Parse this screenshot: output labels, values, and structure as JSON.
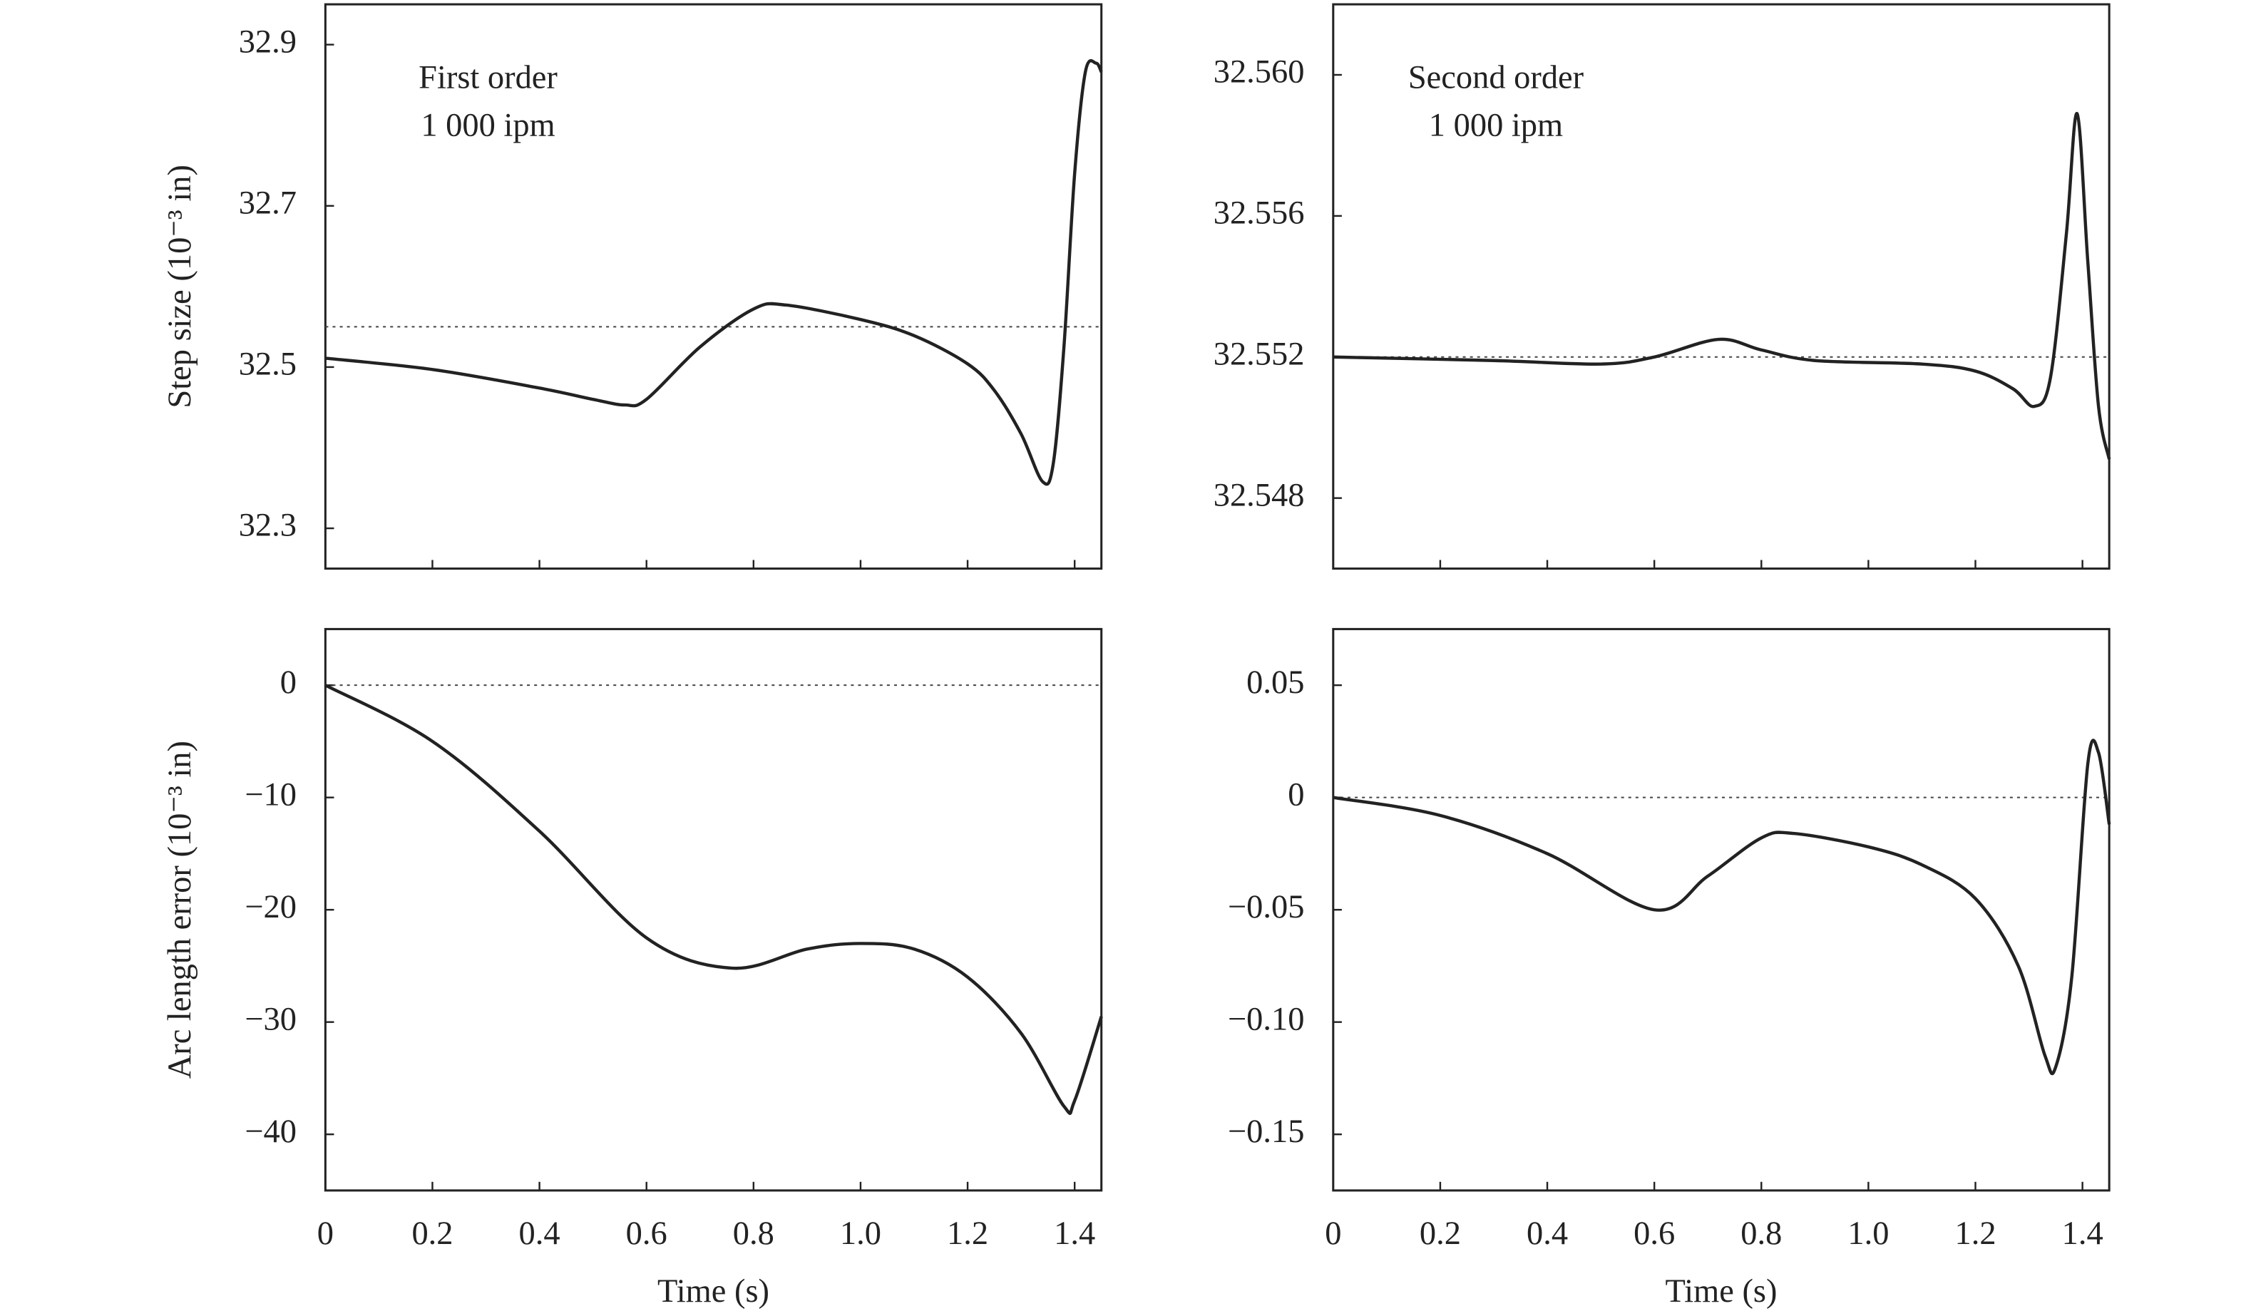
{
  "chart_data": [
    {
      "type": "line",
      "ylabel": "Step size (10⁻³ in)",
      "annotation": [
        "First order",
        "1 000 ipm"
      ],
      "xlim": [
        0,
        1.45
      ],
      "ylim": [
        32.25,
        32.95
      ],
      "xticks": [
        0,
        0.2,
        0.4,
        0.6,
        0.8,
        1,
        1.2,
        1.4
      ],
      "yticks": [
        32.3,
        32.5,
        32.7,
        32.9
      ],
      "reference": 32.55,
      "x": [
        0,
        0.2,
        0.4,
        0.5,
        0.56,
        0.6,
        0.7,
        0.8,
        0.86,
        1.0,
        1.1,
        1.2,
        1.25,
        1.3,
        1.34,
        1.36,
        1.38,
        1.4,
        1.42,
        1.44,
        1.45
      ],
      "series": [
        {
          "color": "#222222",
          "values": [
            32.511,
            32.497,
            32.474,
            32.46,
            32.453,
            32.46,
            32.525,
            32.572,
            32.577,
            32.559,
            32.539,
            32.504,
            32.471,
            32.417,
            32.358,
            32.38,
            32.525,
            32.74,
            32.866,
            32.877,
            32.866
          ]
        }
      ]
    },
    {
      "type": "line",
      "annotation": [
        "Second order",
        "1 000 ipm"
      ],
      "xlim": [
        0,
        1.45
      ],
      "ylim": [
        32.546,
        32.562
      ],
      "xticks": [
        0,
        0.2,
        0.4,
        0.6,
        0.8,
        1,
        1.2,
        1.4
      ],
      "yticks": [
        32.548,
        32.552,
        32.556,
        {
          "value": 32.56,
          "label": "32.560"
        }
      ],
      "reference": 32.552,
      "x": [
        0,
        0.3,
        0.5,
        0.6,
        0.72,
        0.8,
        0.9,
        1.1,
        1.2,
        1.27,
        1.31,
        1.34,
        1.37,
        1.39,
        1.41,
        1.43,
        1.45
      ],
      "series": [
        {
          "color": "#222222",
          "values": [
            32.552,
            32.5519,
            32.5518,
            32.552,
            32.5525,
            32.5522,
            32.5519,
            32.5518,
            32.5516,
            32.5511,
            32.5506,
            32.5514,
            32.5555,
            32.5589,
            32.5547,
            32.5506,
            32.5491
          ]
        }
      ]
    },
    {
      "type": "line",
      "ylabel": "Arc length error (10⁻³ in)",
      "xlabel": "Time (s)",
      "xlim": [
        0,
        1.45
      ],
      "ylim": [
        -45,
        5
      ],
      "xticks": [
        0,
        0.2,
        0.4,
        0.6,
        0.8,
        {
          "value": 1,
          "label": "1.0"
        },
        1.2,
        1.4
      ],
      "yticks": [
        {
          "value": -40,
          "label": "−40"
        },
        {
          "value": -30,
          "label": "−30"
        },
        {
          "value": -20,
          "label": "−20"
        },
        {
          "value": -10,
          "label": "−10"
        },
        0
      ],
      "reference": 0,
      "x": [
        0,
        0.2,
        0.4,
        0.6,
        0.76,
        0.9,
        1.0,
        1.1,
        1.2,
        1.3,
        1.38,
        1.4,
        1.45
      ],
      "series": [
        {
          "color": "#222222",
          "values": [
            0,
            -5,
            -13,
            -22.5,
            -25.2,
            -23.5,
            -23,
            -23.5,
            -26,
            -31,
            -37.5,
            -37,
            -29.5
          ]
        }
      ]
    },
    {
      "type": "line",
      "xlabel": "Time (s)",
      "xlim": [
        0,
        1.45
      ],
      "ylim": [
        -0.175,
        0.075
      ],
      "xticks": [
        0,
        0.2,
        0.4,
        0.6,
        0.8,
        {
          "value": 1,
          "label": "1.0"
        },
        1.2,
        1.4
      ],
      "yticks": [
        {
          "value": -0.15,
          "label": "−0.15"
        },
        {
          "value": -0.1,
          "label": "−0.10"
        },
        {
          "value": -0.05,
          "label": "−0.05"
        },
        0,
        0.05
      ],
      "reference": 0,
      "x": [
        0,
        0.2,
        0.4,
        0.6,
        0.7,
        0.8,
        0.86,
        1.0,
        1.1,
        1.2,
        1.28,
        1.33,
        1.35,
        1.38,
        1.41,
        1.43,
        1.45
      ],
      "series": [
        {
          "color": "#222222",
          "values": [
            0,
            -0.008,
            -0.025,
            -0.05,
            -0.035,
            -0.018,
            -0.016,
            -0.022,
            -0.03,
            -0.045,
            -0.075,
            -0.115,
            -0.12,
            -0.08,
            0.015,
            0.02,
            -0.012
          ]
        }
      ]
    }
  ]
}
